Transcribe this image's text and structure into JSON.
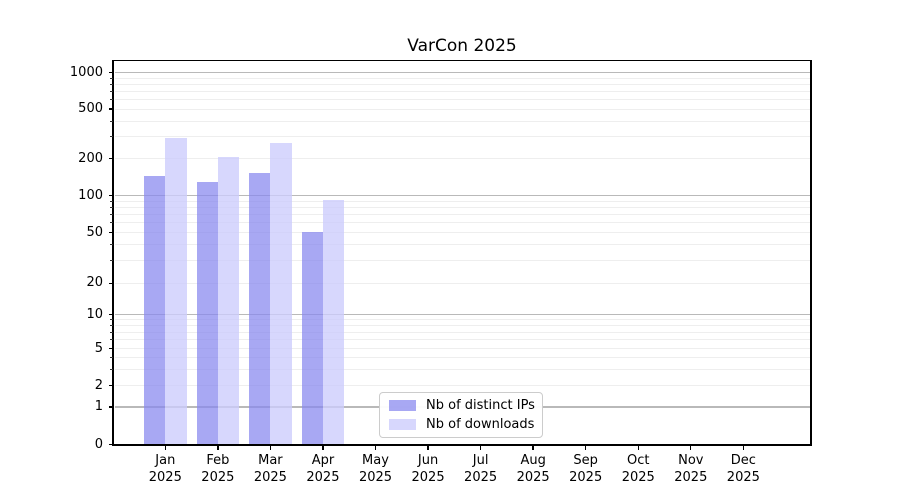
{
  "title": "VarCon 2025",
  "legend": {
    "items": [
      {
        "label": "Nb of distinct IPs",
        "color": "#8787ef",
        "alpha": 0.72
      },
      {
        "label": "Nb of downloads",
        "color": "#ccccfc",
        "alpha": 0.78
      }
    ]
  },
  "chart_data": {
    "type": "bar",
    "title": "VarCon 2025",
    "categories": [
      "Jan 2025",
      "Feb 2025",
      "Mar 2025",
      "Apr 2025",
      "May 2025",
      "Jun 2025",
      "Jul 2025",
      "Aug 2025",
      "Sep 2025",
      "Oct 2025",
      "Nov 2025",
      "Dec 2025"
    ],
    "x_tick_labels": [
      {
        "month": "Jan",
        "year": "2025"
      },
      {
        "month": "Feb",
        "year": "2025"
      },
      {
        "month": "Mar",
        "year": "2025"
      },
      {
        "month": "Apr",
        "year": "2025"
      },
      {
        "month": "May",
        "year": "2025"
      },
      {
        "month": "Jun",
        "year": "2025"
      },
      {
        "month": "Jul",
        "year": "2025"
      },
      {
        "month": "Aug",
        "year": "2025"
      },
      {
        "month": "Sep",
        "year": "2025"
      },
      {
        "month": "Oct",
        "year": "2025"
      },
      {
        "month": "Nov",
        "year": "2025"
      },
      {
        "month": "Dec",
        "year": "2025"
      }
    ],
    "series": [
      {
        "name": "Nb of distinct IPs",
        "color": "#8787ef",
        "alpha": 0.72,
        "values": [
          146,
          130,
          154,
          51,
          null,
          null,
          null,
          null,
          null,
          null,
          null,
          null
        ]
      },
      {
        "name": "Nb of downloads",
        "color": "#ccccfc",
        "alpha": 0.78,
        "values": [
          295,
          208,
          266,
          92,
          null,
          null,
          null,
          null,
          null,
          null,
          null,
          null
        ]
      }
    ],
    "yscale": "asinh (linear near 0, logarithmic above)",
    "y_ticks": [
      0,
      1,
      2,
      5,
      10,
      20,
      50,
      100,
      200,
      500,
      1000
    ],
    "y_minor_gridlines": [
      2,
      3,
      4,
      5,
      6,
      7,
      8,
      9,
      20,
      30,
      40,
      50,
      60,
      70,
      80,
      90,
      200,
      300,
      400,
      500,
      600,
      700,
      800,
      900
    ],
    "y_major_gridlines": [
      1,
      10,
      100,
      1000
    ],
    "ylim": [
      0,
      1250
    ],
    "grid": "horizontal major + faint minor",
    "legend_position": "lower center (inside axes)",
    "colors": {
      "grid_major": "#b9b9b9",
      "grid_minor": "#eeeeee",
      "spine": "#000000",
      "background": "#ffffff"
    }
  }
}
